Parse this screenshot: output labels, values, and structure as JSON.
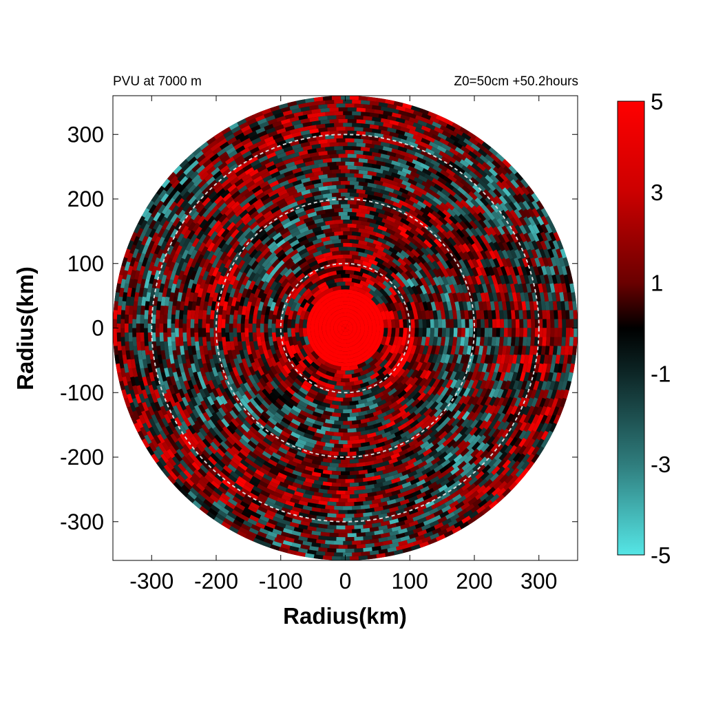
{
  "header": {
    "left": "PVU at  7000 m",
    "right": "Z0=50cm  +50.2hours"
  },
  "colors": {
    "positive": "#ff0000",
    "zero": "#000000",
    "negative": "#55e6e6",
    "ring": "#d9d9d9",
    "frame": "#000000"
  },
  "chart_data": {
    "type": "heatmap",
    "title": "",
    "xlabel": "Radius(km)",
    "ylabel": "Radius(km)",
    "xlim": [
      -360,
      360
    ],
    "ylim": [
      -360,
      360
    ],
    "xticks": [
      -300,
      -200,
      -100,
      0,
      100,
      200,
      300
    ],
    "yticks": [
      300,
      200,
      100,
      0,
      -100,
      -200,
      -300
    ],
    "domain_radius_km": 360,
    "reference_rings_km": [
      100,
      200,
      300
    ],
    "colorbar": {
      "min": -5,
      "max": 5,
      "ticks": [
        5,
        3,
        1,
        -1,
        -3,
        -5
      ],
      "scale": "red-black-cyan"
    },
    "field_description_values": {
      "core_radius_km": 60,
      "core_value": 5
    }
  }
}
